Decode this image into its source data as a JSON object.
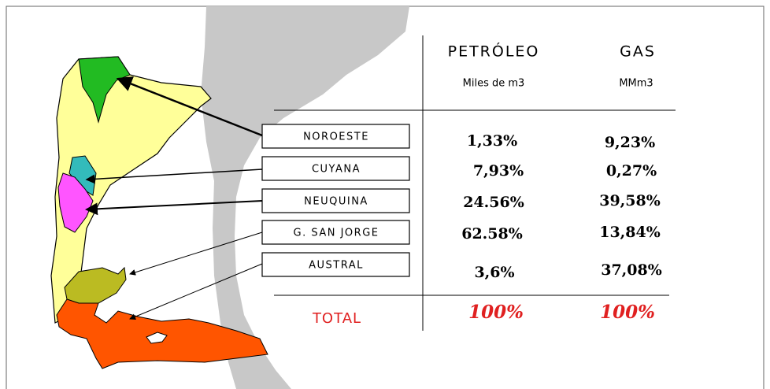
{
  "table": {
    "headers": [
      "PETRÓLEO",
      "GAS"
    ],
    "units": [
      "Miles de m3",
      "MMm3"
    ],
    "rows": [
      [
        "NOROESTE",
        "1,33%",
        "9,23%"
      ],
      [
        "CUYANA",
        "7,93%",
        "0,27%"
      ],
      [
        "NEUQUINA",
        "24.56%",
        "39,58%"
      ],
      [
        "G. SAN JORGE",
        "62.58%",
        "13,84%"
      ],
      [
        "AUSTRAL",
        "3,6%",
        "37,08%"
      ]
    ],
    "total": [
      "TOTAL",
      "100%",
      "100%"
    ]
  }
}
